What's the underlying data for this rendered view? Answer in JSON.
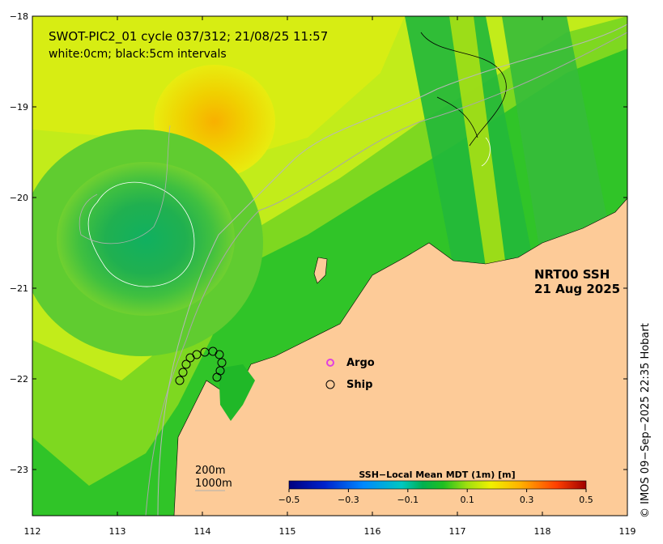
{
  "title": {
    "line1": "SWOT-PIC2_01 cycle 037/312; 21/08/25 11:57",
    "line2": "white:0cm; black:5cm intervals"
  },
  "product": {
    "name": "NRT00 SSH",
    "date": "21 Aug 2025"
  },
  "legend": {
    "argo_label": "Argo",
    "ship_label": "Ship",
    "argo_color": "#e040e0",
    "ship_color": "#000000"
  },
  "depth_legend": {
    "line1": "200m",
    "line2": "1000m"
  },
  "colorbar": {
    "title": "SSH−Local Mean MDT (1m) [m]",
    "ticks": [
      "−0.5",
      "−0.3",
      "−0.1",
      "0.1",
      "0.3",
      "0.5"
    ],
    "colors": [
      "#00007f",
      "#0022cc",
      "#0077ff",
      "#00c0e0",
      "#00b080",
      "#20c020",
      "#90e010",
      "#f0f000",
      "#ffb000",
      "#ff5000",
      "#b00000"
    ]
  },
  "axes": {
    "x_ticks": [
      "112",
      "113",
      "114",
      "115",
      "116",
      "117",
      "118",
      "119"
    ],
    "y_ticks": [
      "−18",
      "−19",
      "−20",
      "−21",
      "−22",
      "−23"
    ]
  },
  "colors": {
    "land": "#fdcb98",
    "ocean_base": "#c2ec1a",
    "shelf": "#22c028"
  },
  "credit": "© IMOS 09−Sep−2025 22:35 Hobart"
}
